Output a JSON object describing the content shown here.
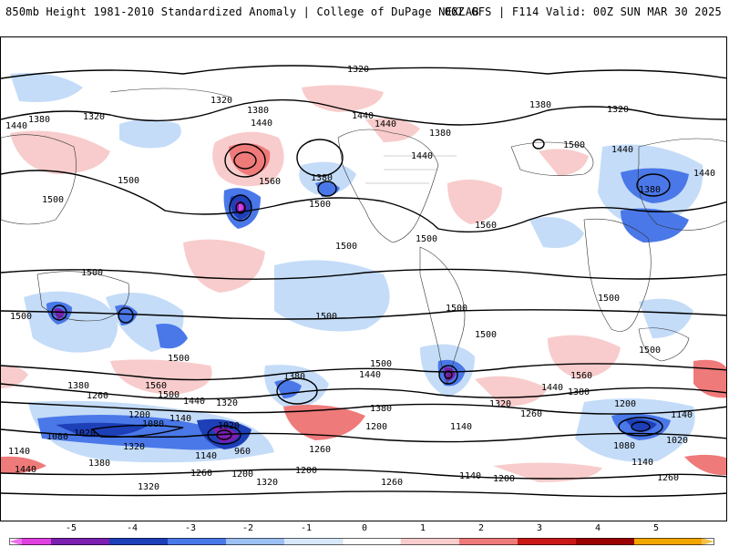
{
  "header": {
    "title_left": "850mb Height 1981-2010 Standardized Anomaly | College of DuPage NEXLAB",
    "title_right": "06Z GFS | F114 Valid: 00Z SUN MAR 30 2025"
  },
  "map": {
    "contour_labels": [
      "1320",
      "1380",
      "1440",
      "1500",
      "1560",
      "1200",
      "1260",
      "1140",
      "1080",
      "1020",
      "960"
    ],
    "colors": {
      "anom_neg5": "#e040e0",
      "anom_neg4": "#7a1fb0",
      "anom_neg3": "#1d3fb8",
      "anom_neg2": "#4a78e8",
      "anom_neg1": "#c4dcf8",
      "anom_pos1": "#f8cccc",
      "anom_pos2": "#ef7a7a",
      "anom_pos3": "#c81818",
      "anom_pos4": "#9a0000",
      "anom_pos5": "#f3a500"
    }
  },
  "colorbar": {
    "labels": [
      "-5",
      "-4",
      "-3",
      "-2",
      "-1",
      "0",
      "1",
      "2",
      "3",
      "4",
      "5"
    ]
  }
}
